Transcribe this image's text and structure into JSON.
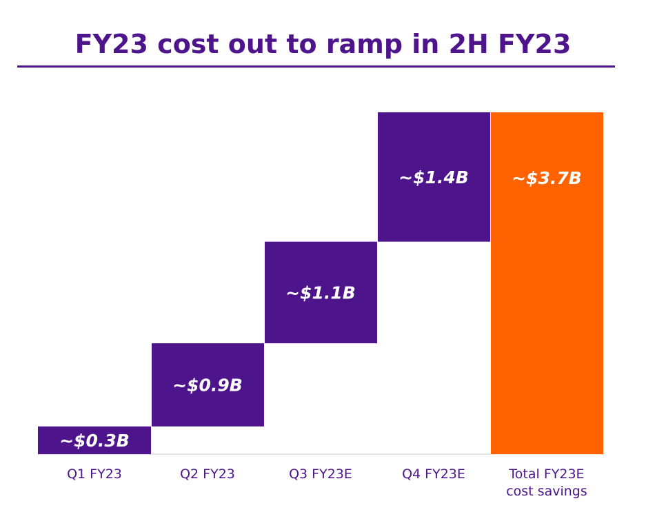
{
  "title": "FY23 cost out to ramp in 2H FY23",
  "colors": {
    "title": "#4d148c",
    "quarter_bar": "#4d148c",
    "total_bar": "#ff6200",
    "bar_label": "#ffffff",
    "axis_label": "#4d148c",
    "baseline": "#cccccc"
  },
  "chart_data": {
    "type": "waterfall",
    "title": "FY23 cost out to ramp in 2H FY23",
    "xlabel": "",
    "ylabel": "",
    "ylim": [
      0,
      3.7
    ],
    "grid": false,
    "categories": [
      [
        "Q1 FY23"
      ],
      [
        "Q2 FY23"
      ],
      [
        "Q3 FY23E"
      ],
      [
        "Q4 FY23E"
      ],
      [
        "Total FY23E",
        "cost savings"
      ]
    ],
    "values": [
      0.3,
      0.9,
      1.1,
      1.4,
      3.7
    ],
    "value_labels": [
      "~$0.3B",
      "~$0.9B",
      "~$1.1B",
      "~$1.4B",
      "~$3.7B"
    ],
    "is_total": [
      false,
      false,
      false,
      false,
      true
    ]
  }
}
